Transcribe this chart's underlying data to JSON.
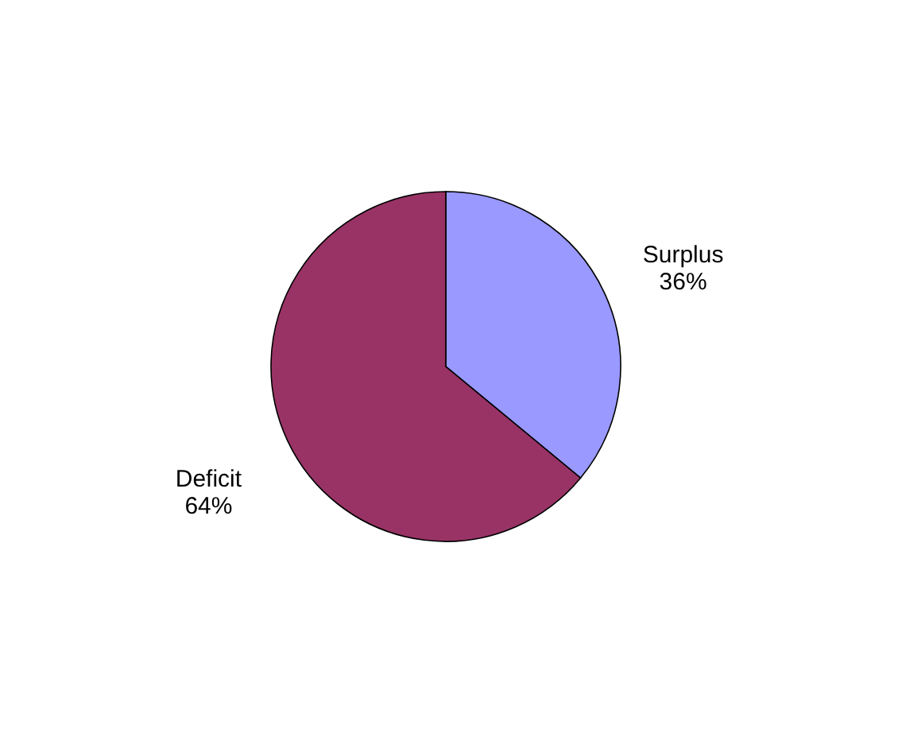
{
  "chart_data": {
    "type": "pie",
    "categories": [
      "Surplus",
      "Deficit"
    ],
    "values": [
      36,
      64
    ],
    "colors": [
      "#9999ff",
      "#993366"
    ],
    "value_labels": [
      "36%",
      "64%"
    ],
    "legend": false
  }
}
